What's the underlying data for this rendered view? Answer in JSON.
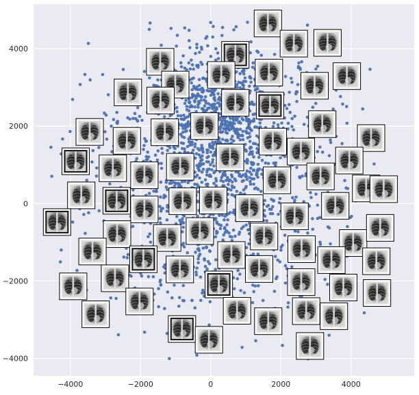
{
  "chart_data": {
    "type": "scatter",
    "title": "",
    "xlabel": "",
    "ylabel": "",
    "xlim": [
      -5050,
      5800
    ],
    "ylim": [
      -4450,
      5150
    ],
    "x_ticks": [
      -4000,
      -2000,
      0,
      2000,
      4000
    ],
    "y_ticks": [
      -4000,
      -2000,
      0,
      2000,
      4000
    ],
    "x_tick_labels": [
      "−4000",
      "−2000",
      "0",
      "2000",
      "4000"
    ],
    "y_tick_labels": [
      "−4000",
      "−2000",
      "0",
      "2000",
      "4000"
    ],
    "grid": true,
    "background_color": "#eaeaf2",
    "grid_color": "#ffffff",
    "point_color": "#4c72b0",
    "point_count": 2200,
    "cluster": {
      "center": [
        200,
        600
      ],
      "spread": [
        1750,
        1650
      ],
      "dense_core": [
        300,
        2300
      ]
    },
    "thumbnails": [
      [
        1630,
        4650
      ],
      [
        2370,
        4130
      ],
      [
        3330,
        4150
      ],
      [
        -1440,
        3660
      ],
      [
        700,
        3840
      ],
      [
        300,
        3320
      ],
      [
        1660,
        3380
      ],
      [
        3880,
        3290
      ],
      [
        -1010,
        3070
      ],
      [
        2960,
        3040
      ],
      [
        -2360,
        2870
      ],
      [
        -1430,
        2660
      ],
      [
        700,
        2600
      ],
      [
        1690,
        2530
      ],
      [
        3180,
        2050
      ],
      [
        -3450,
        1850
      ],
      [
        -2390,
        1620
      ],
      [
        -1310,
        1840
      ],
      [
        -180,
        2000
      ],
      [
        1770,
        1600
      ],
      [
        2570,
        1340
      ],
      [
        4570,
        1690
      ],
      [
        -3850,
        1090
      ],
      [
        -2790,
        910
      ],
      [
        -1890,
        730
      ],
      [
        -870,
        950
      ],
      [
        550,
        1190
      ],
      [
        1890,
        600
      ],
      [
        3130,
        700
      ],
      [
        3950,
        1110
      ],
      [
        -3690,
        210
      ],
      [
        -2680,
        70
      ],
      [
        -1890,
        -150
      ],
      [
        -800,
        60
      ],
      [
        70,
        80
      ],
      [
        1100,
        -120
      ],
      [
        2390,
        -330
      ],
      [
        3550,
        -60
      ],
      [
        4430,
        390
      ],
      [
        4930,
        370
      ],
      [
        -4380,
        -480
      ],
      [
        -2670,
        -790
      ],
      [
        -1240,
        -890
      ],
      [
        -310,
        -710
      ],
      [
        1520,
        -850
      ],
      [
        2590,
        -1180
      ],
      [
        4060,
        -1020
      ],
      [
        4830,
        -630
      ],
      [
        -3370,
        -1240
      ],
      [
        -1920,
        -1440
      ],
      [
        -880,
        -1700
      ],
      [
        590,
        -1330
      ],
      [
        1380,
        -1690
      ],
      [
        3440,
        -1460
      ],
      [
        4720,
        -1490
      ],
      [
        -3920,
        -2140
      ],
      [
        -2730,
        -1930
      ],
      [
        -2030,
        -2530
      ],
      [
        230,
        -2090
      ],
      [
        2580,
        -2030
      ],
      [
        3780,
        -2170
      ],
      [
        4740,
        -2310
      ],
      [
        -3280,
        -2860
      ],
      [
        750,
        -2770
      ],
      [
        1640,
        -3040
      ],
      [
        2720,
        -2780
      ],
      [
        3510,
        -2910
      ],
      [
        -820,
        -3240
      ],
      [
        -50,
        -3520
      ],
      [
        2830,
        -3680
      ]
    ]
  }
}
